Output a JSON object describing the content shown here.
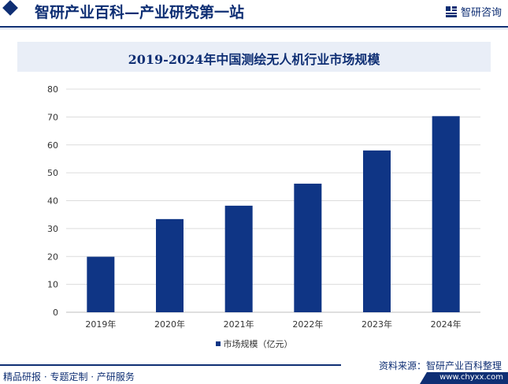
{
  "header": {
    "title": "智研产业百科—产业研究第一站",
    "logo_text": "智研咨询"
  },
  "chart_data": {
    "type": "bar",
    "title": "2019-2024年中国测绘无人机行业市场规模",
    "categories": [
      "2019年",
      "2020年",
      "2021年",
      "2022年",
      "2023年",
      "2024年"
    ],
    "series": [
      {
        "name": "市场规模（亿元）",
        "values": [
          19.9,
          33.4,
          38.2,
          46.1,
          58.0,
          70.3
        ]
      }
    ],
    "yticks": [
      0,
      10,
      20,
      30,
      40,
      50,
      60,
      70,
      80
    ],
    "ylim": [
      0,
      80
    ],
    "xlabel": "",
    "ylabel": "",
    "grid": true,
    "legend_position": "bottom",
    "bar_color": "#0f3585"
  },
  "footer": {
    "source": "资料来源：智研产业百科整理",
    "left_text": "精品研报 · 专题定制 · 产研服务",
    "url": "www.chyxx.com"
  },
  "colors": {
    "brand": "#0f2f74",
    "title_band": "#e9eef7",
    "grid": "#dcdcdc"
  }
}
